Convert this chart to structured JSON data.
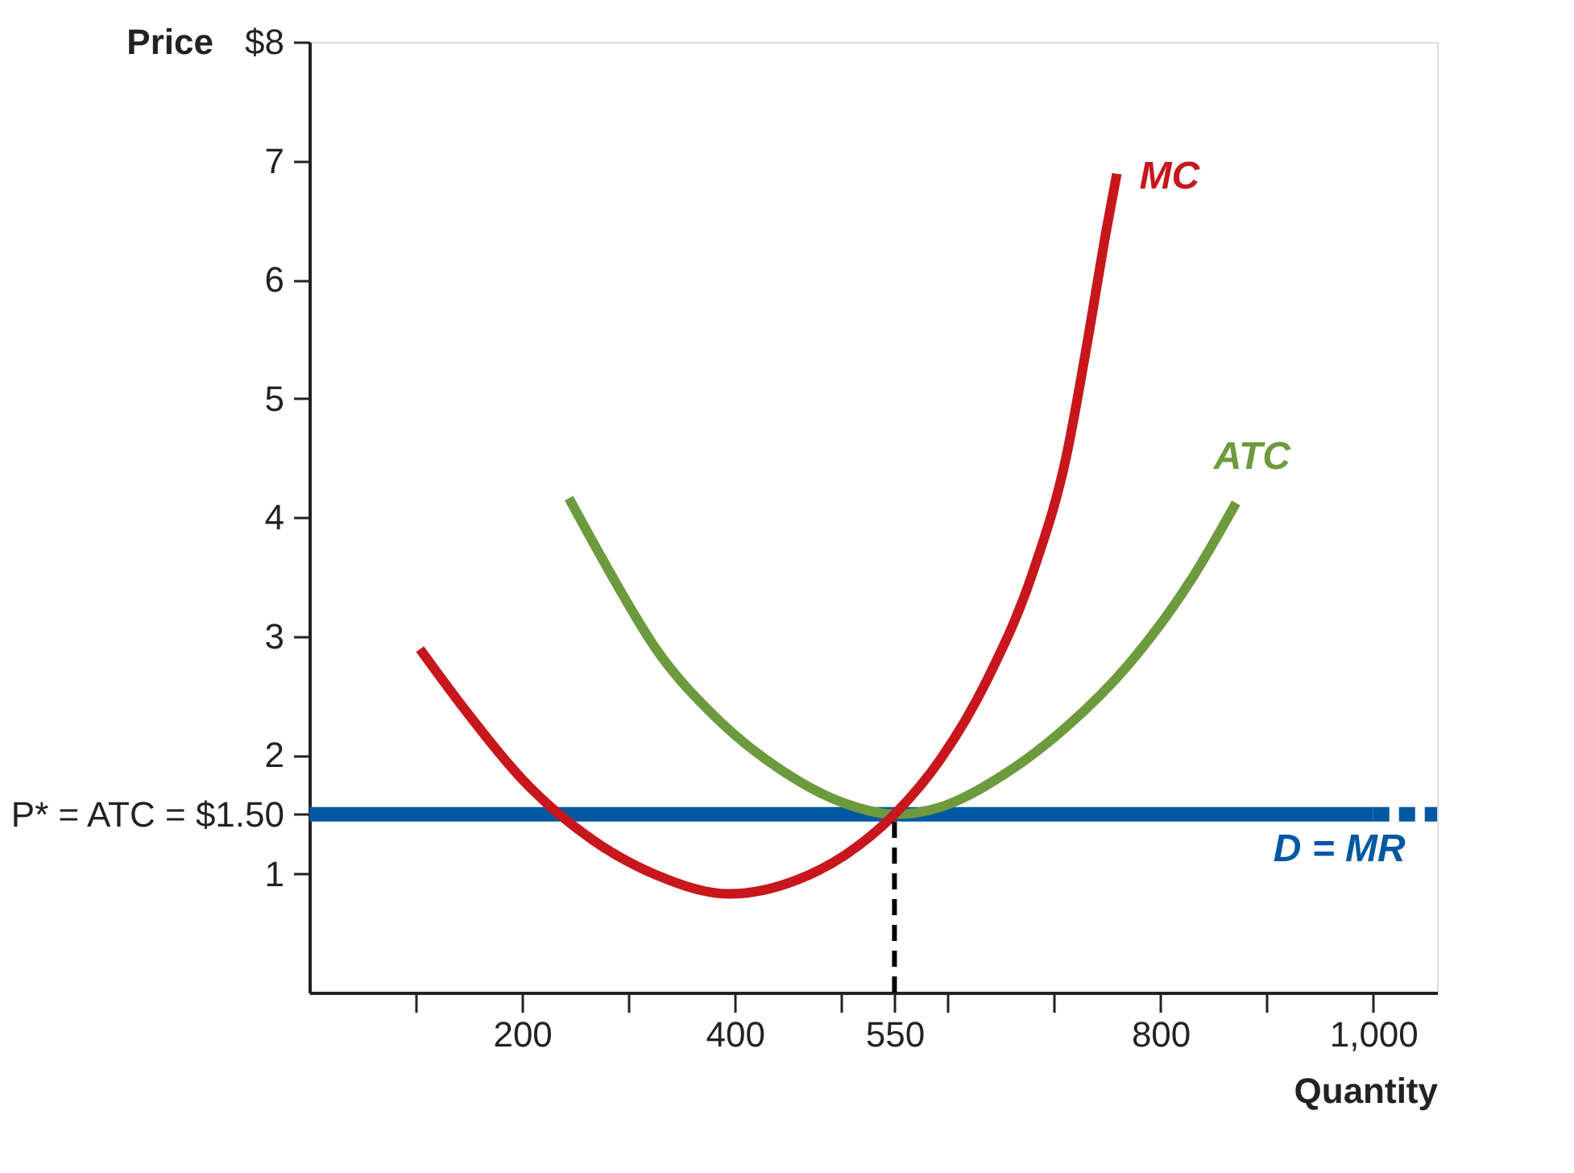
{
  "chart_data": {
    "type": "line",
    "xlabel": "Quantity",
    "ylabel": "Price",
    "xlim": [
      0,
      1060
    ],
    "ylim": [
      0,
      8
    ],
    "xticks": [
      {
        "value": 100,
        "label": null
      },
      200,
      {
        "value": 300,
        "label": null
      },
      400,
      {
        "value": 500,
        "label": null
      },
      550,
      {
        "value": 600,
        "label": null
      },
      {
        "value": 700,
        "label": null
      },
      800,
      {
        "value": 900,
        "label": null
      },
      {
        "value": 1000,
        "label": "1,000"
      }
    ],
    "yticks": [
      1,
      {
        "value": 1.5,
        "label": "P* = ATC = $1.50"
      },
      2,
      3,
      4,
      5,
      6,
      7,
      {
        "value": 8,
        "label": "$8"
      }
    ],
    "grid": false,
    "series": [
      {
        "name": "D = MR",
        "color": "#0058a3",
        "x": [
          0,
          1000
        ],
        "values": [
          1.5,
          1.5
        ],
        "line_style": "solid"
      },
      {
        "color": "#0058a3",
        "x": [
          1000,
          1060
        ],
        "values": [
          1.5,
          1.5
        ],
        "line_style": "dashed"
      },
      {
        "name": "ATC",
        "color": "#6e9a3e",
        "x": [
          244,
          281,
          326,
          385,
          444,
          504,
          550,
          593,
          652,
          711,
          770,
          830,
          871
        ],
        "values": [
          4.16,
          3.56,
          2.89,
          2.29,
          1.87,
          1.59,
          1.5,
          1.56,
          1.83,
          2.23,
          2.76,
          3.49,
          4.12
        ],
        "line_style": "solid"
      },
      {
        "name": "MC",
        "color": "#c8161d",
        "x": [
          104,
          148,
          207,
          267,
          326,
          395,
          459,
          504,
          550,
          593,
          637,
          681,
          711,
          733,
          748,
          759
        ],
        "values": [
          2.89,
          2.36,
          1.73,
          1.28,
          0.99,
          0.83,
          0.95,
          1.16,
          1.5,
          1.96,
          2.63,
          3.56,
          4.49,
          5.56,
          6.36,
          6.89
        ],
        "line_style": "solid"
      },
      {
        "color": "#000000",
        "x": [
          550,
          550
        ],
        "values": [
          0,
          1.5
        ],
        "line_style": "dashed"
      }
    ]
  }
}
